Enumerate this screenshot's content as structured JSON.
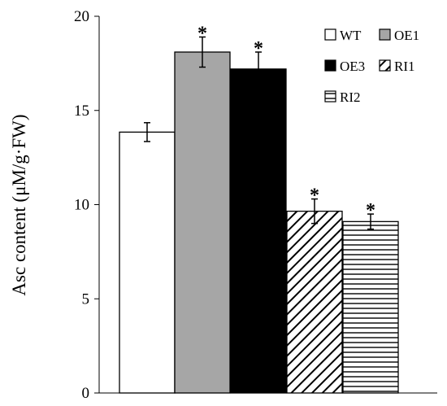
{
  "chart_data": {
    "type": "bar",
    "title": "",
    "xlabel": "",
    "ylabel": "Asc content (μM/g·FW)",
    "ylim": [
      0,
      20
    ],
    "yticks": [
      "0",
      "5",
      "10",
      "15",
      "20"
    ],
    "grid": false,
    "legend_position": "top-right",
    "categories": [
      "WT",
      "OE1",
      "OE3",
      "RI1",
      "RI2"
    ],
    "values": [
      13.85,
      18.1,
      17.2,
      9.65,
      9.1
    ],
    "errors": [
      0.5,
      0.8,
      0.9,
      0.65,
      0.4
    ],
    "significance": [
      "",
      "*",
      "*",
      "*",
      "*"
    ],
    "fills": [
      "white",
      "gray",
      "black",
      "diagonal-hatch",
      "horizontal-hatch"
    ],
    "colors": {
      "gray": "#a6a6a6",
      "black": "#000000",
      "white": "#ffffff"
    }
  }
}
